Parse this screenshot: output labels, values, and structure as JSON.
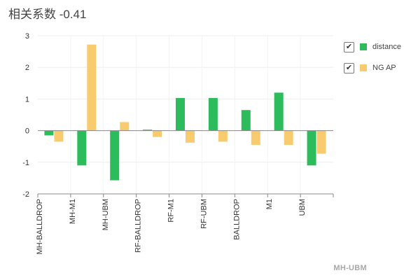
{
  "title": "相关系数 -0.41",
  "footer": "MH-UBM",
  "legend": [
    {
      "label": "distance",
      "color": "#2dbc5c",
      "checked": true
    },
    {
      "label": "NG AP",
      "color": "#f8cb6e",
      "checked": true
    }
  ],
  "chart_data": {
    "type": "bar",
    "categories": [
      "MH-BALLDROP",
      "MH-M1",
      "MH-UBM",
      "RF-BALLDROP",
      "RF-M1",
      "RF-UBM",
      "BALLDROP",
      "M1",
      "UBM"
    ],
    "series": [
      {
        "name": "distance",
        "color": "#2dbc5c",
        "values": [
          -0.15,
          -1.1,
          -1.57,
          0.03,
          1.03,
          1.03,
          0.65,
          1.2,
          -1.1
        ]
      },
      {
        "name": "NG AP",
        "color": "#f8cb6e",
        "values": [
          -0.35,
          2.72,
          0.27,
          -0.2,
          -0.38,
          -0.35,
          -0.45,
          -0.45,
          -0.73
        ]
      }
    ],
    "ylim": [
      -2,
      3
    ],
    "yticks": [
      -2,
      -1,
      0,
      1,
      2,
      3
    ],
    "grid": true,
    "legend_position": "right"
  }
}
